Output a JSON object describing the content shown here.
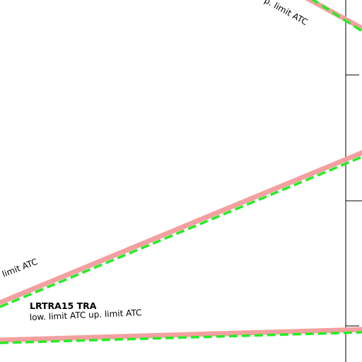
{
  "colors": {
    "boundary_outer": "#f4a0a0",
    "boundary_inner": "#22ee22",
    "grid_line": "#000000",
    "background": "#ffffff"
  },
  "labels": {
    "top_right_fragment": "p. limit ATC",
    "left_fragment": "limit ATC",
    "airspace_name": "LRTRA15 TRA",
    "airspace_limits": "low. limit ATC up. limit ATC"
  }
}
